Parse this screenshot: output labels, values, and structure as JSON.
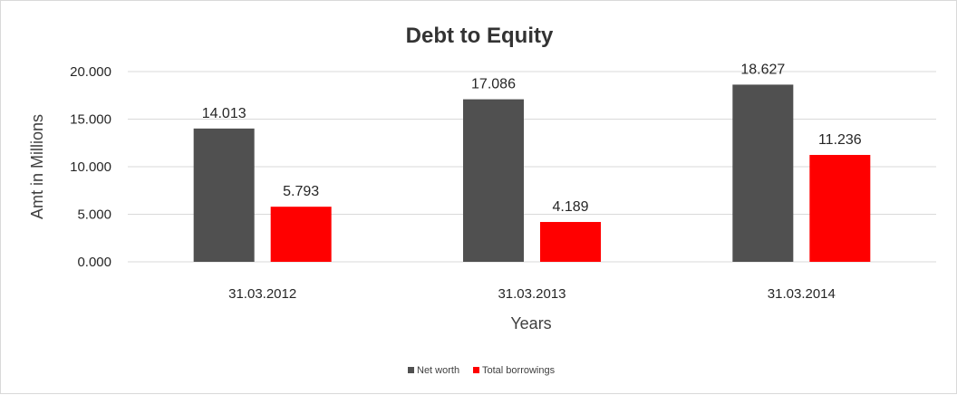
{
  "chart_data": {
    "type": "bar",
    "title": "Debt to Equity",
    "xlabel": "Years",
    "ylabel": "Amt in Millions",
    "categories": [
      "31.03.2012",
      "31.03.2013",
      "31.03.2014"
    ],
    "series": [
      {
        "name": "Net worth",
        "values": [
          14.013,
          17.086,
          18.627
        ],
        "color": "#505050"
      },
      {
        "name": "Total borrowings",
        "values": [
          5.793,
          4.189,
          11.236
        ],
        "color": "#ff0000"
      }
    ],
    "data_labels": [
      [
        "14.013",
        "17.086",
        "18.627"
      ],
      [
        "5.793",
        "4.189",
        "11.236"
      ]
    ],
    "yticks": [
      "0.000",
      "5.000",
      "10.000",
      "15.000",
      "20.000"
    ],
    "ylim": [
      0,
      20
    ],
    "grid": true,
    "legend_position": "bottom"
  }
}
